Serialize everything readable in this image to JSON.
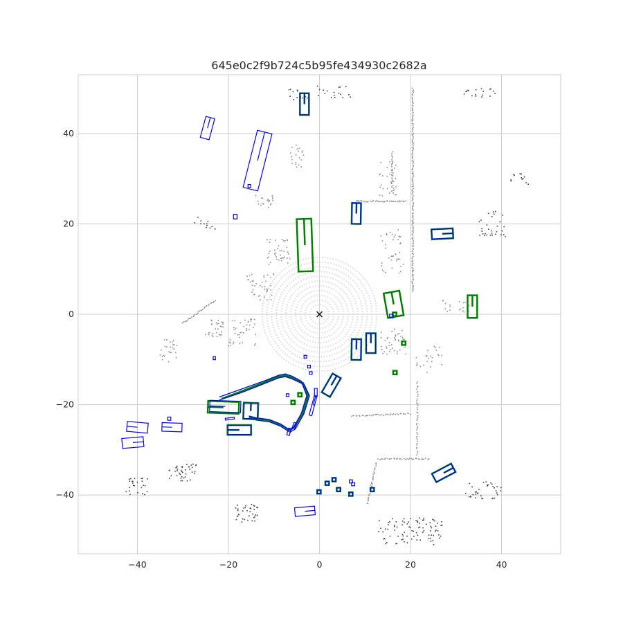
{
  "chart_data": {
    "type": "scatter",
    "title": "645e0c2f9b724c5b95fe434930c2682a",
    "xlabel": "",
    "ylabel": "",
    "xlim": [
      -53,
      53
    ],
    "ylim": [
      -53,
      53
    ],
    "x_ticks": [
      -40,
      -20,
      0,
      20,
      40
    ],
    "y_ticks": [
      -40,
      -20,
      0,
      20,
      40
    ],
    "x_tick_labels": [
      "−40",
      "−20",
      "0",
      "20",
      "40"
    ],
    "y_tick_labels": [
      "−40",
      "−20",
      "0",
      "20",
      "40"
    ],
    "grid": true,
    "ego": {
      "x": 0,
      "y": 0,
      "marker": "x"
    },
    "colors": {
      "ground_truth": "#008000",
      "prediction": "#0000ff",
      "lidar_near": "#d3d3d3",
      "lidar_mid": "#8c8c8c",
      "lidar_far": "#3a3a3a"
    },
    "lidar_rings": [
      2,
      3,
      4,
      5,
      6,
      7,
      8,
      9,
      10,
      11,
      12
    ],
    "lidar_clusters": [
      {
        "x": -12,
        "y": 25,
        "w": 4,
        "h": 3,
        "n": 20
      },
      {
        "x": -9,
        "y": 14,
        "w": 5,
        "h": 6,
        "n": 40
      },
      {
        "x": -13,
        "y": 6,
        "w": 6,
        "h": 6,
        "n": 40
      },
      {
        "x": -17,
        "y": -4,
        "w": 6,
        "h": 6,
        "n": 40
      },
      {
        "x": -23,
        "y": -3,
        "w": 4,
        "h": 4,
        "n": 30
      },
      {
        "x": 15,
        "y": 30,
        "w": 4,
        "h": 8,
        "n": 35
      },
      {
        "x": 16,
        "y": 14,
        "w": 5,
        "h": 10,
        "n": 40
      },
      {
        "x": 16,
        "y": -6,
        "w": 6,
        "h": 6,
        "n": 40
      },
      {
        "x": 24,
        "y": -10,
        "w": 6,
        "h": 6,
        "n": 25
      },
      {
        "x": 30,
        "y": 2,
        "w": 6,
        "h": 3,
        "n": 20
      },
      {
        "x": -5,
        "y": 35,
        "w": 3,
        "h": 5,
        "n": 20
      },
      {
        "x": -33,
        "y": -8,
        "w": 4,
        "h": 5,
        "n": 25
      }
    ],
    "lidar_lines": [
      {
        "x1": 20.5,
        "y1": 50,
        "x2": 20.5,
        "y2": 5,
        "n": 160
      },
      {
        "x1": 8,
        "y1": 25,
        "x2": 19,
        "y2": 25,
        "n": 40
      },
      {
        "x1": -30,
        "y1": -2,
        "x2": -23,
        "y2": 3,
        "n": 30
      },
      {
        "x1": 7,
        "y1": -22.5,
        "x2": 20,
        "y2": -22,
        "n": 40
      },
      {
        "x1": 13,
        "y1": -32,
        "x2": 24,
        "y2": -32,
        "n": 35
      },
      {
        "x1": 21.5,
        "y1": -15,
        "x2": 21.5,
        "y2": -31,
        "n": 40
      },
      {
        "x1": 12.5,
        "y1": -33,
        "x2": 10.5,
        "y2": -42,
        "n": 30
      },
      {
        "x1": 16,
        "y1": 36,
        "x2": 16,
        "y2": 28,
        "n": 20
      }
    ],
    "far_clusters": [
      {
        "x": 20,
        "y": -48,
        "w": 14,
        "h": 6,
        "n": 90
      },
      {
        "x": -16,
        "y": -44,
        "w": 5,
        "h": 4,
        "n": 35
      },
      {
        "x": -30,
        "y": -35,
        "w": 6,
        "h": 4,
        "n": 40
      },
      {
        "x": -40,
        "y": -38,
        "w": 5,
        "h": 4,
        "n": 25
      },
      {
        "x": 36,
        "y": -39,
        "w": 8,
        "h": 4,
        "n": 35
      },
      {
        "x": 38,
        "y": 20,
        "w": 6,
        "h": 6,
        "n": 30
      },
      {
        "x": 44,
        "y": 30,
        "w": 4,
        "h": 3,
        "n": 12
      },
      {
        "x": 35,
        "y": 49,
        "w": 8,
        "h": 2,
        "n": 18
      },
      {
        "x": 0,
        "y": 49,
        "w": 14,
        "h": 3,
        "n": 30
      },
      {
        "x": -25,
        "y": 20,
        "w": 5,
        "h": 4,
        "n": 12
      }
    ],
    "ground_truth_boxes": [
      {
        "cx": -3.3,
        "cy": 46.5,
        "w": 2.0,
        "l": 4.8,
        "heading": 90
      },
      {
        "cx": -3.2,
        "cy": 15.3,
        "w": 3.2,
        "l": 11.6,
        "heading": 92
      },
      {
        "cx": 8.1,
        "cy": 22.3,
        "w": 2.0,
        "l": 4.6,
        "heading": 89
      },
      {
        "cx": 27.0,
        "cy": 17.8,
        "w": 2.2,
        "l": 4.7,
        "heading": 3
      },
      {
        "cx": 16.3,
        "cy": 2.2,
        "w": 3.5,
        "l": 5.5,
        "heading": 100
      },
      {
        "cx": 33.6,
        "cy": 1.7,
        "w": 2.1,
        "l": 5.0,
        "heading": 90
      },
      {
        "cx": 8.1,
        "cy": -7.8,
        "w": 2.1,
        "l": 4.6,
        "heading": 89
      },
      {
        "cx": 11.3,
        "cy": -6.4,
        "w": 2.1,
        "l": 4.4,
        "heading": 90
      },
      {
        "cx": 2.6,
        "cy": -15.7,
        "w": 2.1,
        "l": 4.8,
        "heading": 60
      },
      {
        "cx": -21.1,
        "cy": -20.6,
        "w": 2.6,
        "l": 6.8,
        "heading": 178
      },
      {
        "cx": -15.1,
        "cy": -21.4,
        "w": 3.2,
        "l": 3.6,
        "heading": 88
      },
      {
        "cx": -17.6,
        "cy": -25.6,
        "w": 2.2,
        "l": 5.2,
        "heading": 180
      },
      {
        "cx": 27.3,
        "cy": -35.1,
        "w": 2.1,
        "l": 4.8,
        "heading": 28
      },
      {
        "cx": 16.5,
        "cy": 0.0,
        "w": 0.8,
        "l": 0.8,
        "heading": 0
      },
      {
        "cx": 18.5,
        "cy": -6.4,
        "w": 0.8,
        "l": 0.8,
        "heading": 0
      },
      {
        "cx": 16.6,
        "cy": -12.9,
        "w": 0.8,
        "l": 0.8,
        "heading": 0
      },
      {
        "cx": -5.8,
        "cy": -19.5,
        "w": 0.8,
        "l": 0.8,
        "heading": 0
      },
      {
        "cx": -4.3,
        "cy": -17.8,
        "w": 0.8,
        "l": 0.8,
        "heading": 0
      },
      {
        "cx": 1.7,
        "cy": -37.4,
        "w": 0.8,
        "l": 0.8,
        "heading": 0
      },
      {
        "cx": 3.2,
        "cy": -36.6,
        "w": 0.8,
        "l": 0.8,
        "heading": 0
      },
      {
        "cx": 4.2,
        "cy": -38.8,
        "w": 0.8,
        "l": 0.8,
        "heading": 0
      },
      {
        "cx": -0.1,
        "cy": -39.3,
        "w": 0.8,
        "l": 0.8,
        "heading": 0
      },
      {
        "cx": 6.9,
        "cy": -39.8,
        "w": 0.8,
        "l": 0.8,
        "heading": 0
      },
      {
        "cx": 11.6,
        "cy": -38.8,
        "w": 0.8,
        "l": 0.8,
        "heading": 0
      }
    ],
    "predicted_boxes": [
      {
        "cx": -3.3,
        "cy": 46.5,
        "w": 1.9,
        "l": 4.7,
        "heading": 90
      },
      {
        "cx": -24.6,
        "cy": 41.2,
        "w": 2.0,
        "l": 4.8,
        "heading": 75
      },
      {
        "cx": -13.6,
        "cy": 34.0,
        "w": 3.3,
        "l": 13.0,
        "heading": 76
      },
      {
        "cx": -15.4,
        "cy": 28.4,
        "w": 0.6,
        "l": 0.6,
        "heading": 0
      },
      {
        "cx": -18.5,
        "cy": 21.6,
        "w": 1.0,
        "l": 0.8,
        "heading": 0
      },
      {
        "cx": 8.1,
        "cy": 22.3,
        "w": 1.9,
        "l": 4.6,
        "heading": 89
      },
      {
        "cx": 27.0,
        "cy": 17.8,
        "w": 2.1,
        "l": 4.6,
        "heading": 3
      },
      {
        "cx": 15.8,
        "cy": -0.4,
        "w": 0.8,
        "l": 0.8,
        "heading": 0
      },
      {
        "cx": 8.1,
        "cy": -7.8,
        "w": 2.0,
        "l": 4.5,
        "heading": 89
      },
      {
        "cx": 11.3,
        "cy": -6.4,
        "w": 2.0,
        "l": 4.3,
        "heading": 90
      },
      {
        "cx": 2.6,
        "cy": -15.7,
        "w": 2.0,
        "l": 4.7,
        "heading": 60
      },
      {
        "cx": -23.1,
        "cy": -9.7,
        "w": 0.7,
        "l": 0.5,
        "heading": 0
      },
      {
        "cx": -3.1,
        "cy": -9.4,
        "w": 0.6,
        "l": 0.6,
        "heading": 0
      },
      {
        "cx": -2.3,
        "cy": -11.6,
        "w": 0.6,
        "l": 0.6,
        "heading": 0
      },
      {
        "cx": -1.9,
        "cy": -13.0,
        "w": 0.6,
        "l": 0.6,
        "heading": 0
      },
      {
        "cx": -0.8,
        "cy": -17.3,
        "w": 0.6,
        "l": 1.8,
        "heading": 90
      },
      {
        "cx": -1.4,
        "cy": -20.2,
        "w": 0.6,
        "l": 4.5,
        "heading": 75
      },
      {
        "cx": -7.0,
        "cy": -17.9,
        "w": 0.6,
        "l": 0.6,
        "heading": 0
      },
      {
        "cx": -20.7,
        "cy": -20.4,
        "w": 2.5,
        "l": 6.8,
        "heading": 178
      },
      {
        "cx": -15.1,
        "cy": -21.4,
        "w": 3.0,
        "l": 3.4,
        "heading": 88
      },
      {
        "cx": -17.6,
        "cy": -25.6,
        "w": 2.0,
        "l": 5.0,
        "heading": 180
      },
      {
        "cx": -19.7,
        "cy": -23.1,
        "w": 0.4,
        "l": 2.0,
        "heading": 8
      },
      {
        "cx": -33.0,
        "cy": -23.1,
        "w": 0.7,
        "l": 0.7,
        "heading": 0
      },
      {
        "cx": -40.0,
        "cy": -25.0,
        "w": 2.2,
        "l": 4.6,
        "heading": 175
      },
      {
        "cx": -41.0,
        "cy": -28.4,
        "w": 2.2,
        "l": 4.7,
        "heading": 5
      },
      {
        "cx": -32.4,
        "cy": -25.0,
        "w": 1.9,
        "l": 4.4,
        "heading": 178
      },
      {
        "cx": -6.7,
        "cy": -26.0,
        "w": 0.6,
        "l": 1.5,
        "heading": 75
      },
      {
        "cx": -5.5,
        "cy": -24.6,
        "w": 0.6,
        "l": 1.2,
        "heading": 70
      },
      {
        "cx": 27.3,
        "cy": -35.1,
        "w": 2.0,
        "l": 4.7,
        "heading": 28
      },
      {
        "cx": -3.2,
        "cy": -43.6,
        "w": 1.9,
        "l": 4.4,
        "heading": 5
      },
      {
        "cx": 1.7,
        "cy": -37.4,
        "w": 0.8,
        "l": 0.8,
        "heading": 0
      },
      {
        "cx": 3.2,
        "cy": -36.6,
        "w": 0.8,
        "l": 0.8,
        "heading": 0
      },
      {
        "cx": 4.2,
        "cy": -38.8,
        "w": 0.8,
        "l": 0.8,
        "heading": 0
      },
      {
        "cx": -0.1,
        "cy": -39.3,
        "w": 0.8,
        "l": 0.8,
        "heading": 0
      },
      {
        "cx": 6.9,
        "cy": -39.8,
        "w": 0.8,
        "l": 0.8,
        "heading": 0
      },
      {
        "cx": 11.6,
        "cy": -38.8,
        "w": 0.8,
        "l": 0.8,
        "heading": 0
      },
      {
        "cx": 6.9,
        "cy": -37.0,
        "w": 0.7,
        "l": 0.7,
        "heading": 0
      },
      {
        "cx": 7.4,
        "cy": -37.6,
        "w": 0.7,
        "l": 0.7,
        "heading": 0
      }
    ],
    "ground_truth_polylines": [
      [
        [
          -21.5,
          -18.7
        ],
        [
          -17,
          -17
        ],
        [
          -12,
          -15
        ],
        [
          -9,
          -13.8
        ],
        [
          -7.5,
          -13.5
        ],
        [
          -6,
          -14
        ],
        [
          -3.6,
          -15.2
        ],
        [
          -2.5,
          -18
        ],
        [
          -3.7,
          -22
        ],
        [
          -5.5,
          -25
        ],
        [
          -6.5,
          -25.7
        ],
        [
          -8.5,
          -24.5
        ],
        [
          -11,
          -23.5
        ],
        [
          -14,
          -23.1
        ],
        [
          -15.5,
          -22.7
        ]
      ]
    ],
    "predicted_polylines": [
      [
        [
          -22,
          -18.3
        ],
        [
          -17,
          -16.5
        ],
        [
          -12,
          -14.7
        ],
        [
          -9,
          -13.5
        ],
        [
          -7.5,
          -13.2
        ],
        [
          -6,
          -13.7
        ],
        [
          -4,
          -14.8
        ],
        [
          -2.8,
          -18
        ],
        [
          -4,
          -22
        ],
        [
          -5.7,
          -25
        ],
        [
          -6.7,
          -25.5
        ],
        [
          -8.5,
          -24.3
        ],
        [
          -11,
          -23.3
        ],
        [
          -14,
          -22.9
        ],
        [
          -15.5,
          -22.5
        ]
      ],
      [
        [
          -22,
          -19
        ],
        [
          -17,
          -17.3
        ],
        [
          -12,
          -15.3
        ],
        [
          -9,
          -14.1
        ],
        [
          -7.5,
          -13.8
        ],
        [
          -6,
          -14.3
        ],
        [
          -3.3,
          -15.6
        ],
        [
          -2.2,
          -18
        ],
        [
          -3.4,
          -22
        ],
        [
          -5.3,
          -25.4
        ],
        [
          -6.5,
          -26.1
        ],
        [
          -8.5,
          -24.8
        ],
        [
          -11,
          -23.8
        ],
        [
          -14,
          -23.4
        ],
        [
          -15.5,
          -23
        ]
      ]
    ]
  }
}
